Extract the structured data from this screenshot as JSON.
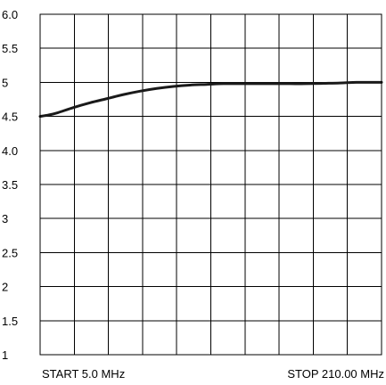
{
  "chart_data": {
    "type": "line",
    "title": "",
    "xlabel": "",
    "ylabel": "",
    "x_start_label": "START  5.0 MHz",
    "x_stop_label": "STOP  210.00 MHz",
    "xlim": [
      5.0,
      210.0
    ],
    "ylim": [
      1,
      6
    ],
    "x_grid_divisions": 10,
    "y_ticks": [
      "1",
      "1.5",
      "2",
      "2.5",
      "3",
      "3.5",
      "4.0",
      "4.5",
      "5",
      "5.5",
      "6.0"
    ],
    "grid": true,
    "series": [
      {
        "x": [
          5.0,
          10.0,
          15.0,
          25.0,
          35.0,
          45.0,
          55.0,
          65.0,
          75.0,
          85.0,
          95.0,
          105.0,
          115.0,
          125.0,
          135.0,
          145.0,
          155.0,
          165.0,
          175.0,
          185.0,
          195.0,
          205.0,
          210.0
        ],
        "y": [
          4.5,
          4.52,
          4.55,
          4.63,
          4.7,
          4.76,
          4.82,
          4.87,
          4.91,
          4.94,
          4.96,
          4.97,
          4.98,
          4.98,
          4.98,
          4.98,
          4.98,
          4.98,
          4.985,
          4.99,
          5.0,
          5.0,
          5.0
        ]
      }
    ]
  }
}
